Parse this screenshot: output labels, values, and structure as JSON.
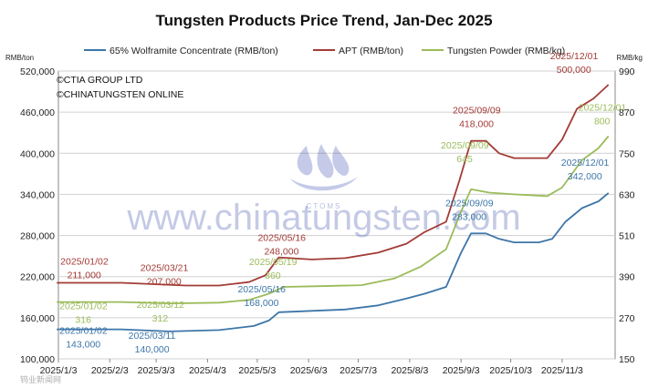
{
  "watermark": {
    "site": "www.chinatungsten.com",
    "logo_text": "CTOMS",
    "footer": "钨业新闻网"
  },
  "copyright": [
    "©CTIA GROUP LTD",
    "©CHINATUNGSTEN ONLINE"
  ],
  "chart_data": {
    "type": "line",
    "title": "Tungsten Products Price Trend, Jan-Dec 2025",
    "left_axis": {
      "unit": "RMB/ton",
      "range": [
        100000,
        520000
      ],
      "ticks": [
        100000,
        160000,
        220000,
        280000,
        340000,
        400000,
        460000,
        520000
      ],
      "tick_labels": [
        "100,000",
        "160,000",
        "220,000",
        "280,000",
        "340,000",
        "400,000",
        "460,000",
        "520,000"
      ]
    },
    "right_axis": {
      "unit": "RMB/kg",
      "range": [
        150,
        990
      ],
      "ticks": [
        150,
        270,
        390,
        510,
        630,
        750,
        870,
        990
      ],
      "tick_labels": [
        "150",
        "270",
        "390",
        "510",
        "630",
        "750",
        "870",
        "990"
      ]
    },
    "x_axis": {
      "range": [
        "2025/1/3",
        "2025/12/5"
      ],
      "tick_labels": [
        "2025/1/3",
        "2025/2/3",
        "2025/3/3",
        "2025/4/3",
        "2025/5/3",
        "2025/6/3",
        "2025/7/3",
        "2025/8/3",
        "2025/9/3",
        "2025/10/3",
        "2025/11/3"
      ]
    },
    "grid": true,
    "legend_position": "top",
    "series": [
      {
        "name": "65% Wolframite Concentrate (RMB/ton)",
        "axis": "left",
        "color": "#3d76a8",
        "points": [
          [
            "2025/1/2",
            143000
          ],
          [
            "2025/2/10",
            143000
          ],
          [
            "2025/3/11",
            140000
          ],
          [
            "2025/4/10",
            142000
          ],
          [
            "2025/5/1",
            148000
          ],
          [
            "2025/5/10",
            156000
          ],
          [
            "2025/5/16",
            168000
          ],
          [
            "2025/6/5",
            170000
          ],
          [
            "2025/6/25",
            172000
          ],
          [
            "2025/7/15",
            178000
          ],
          [
            "2025/8/1",
            188000
          ],
          [
            "2025/8/12",
            195000
          ],
          [
            "2025/8/25",
            205000
          ],
          [
            "2025/9/3",
            255000
          ],
          [
            "2025/9/9",
            283000
          ],
          [
            "2025/9/18",
            283000
          ],
          [
            "2025/9/26",
            275000
          ],
          [
            "2025/10/5",
            270000
          ],
          [
            "2025/10/20",
            270000
          ],
          [
            "2025/10/28",
            275000
          ],
          [
            "2025/11/5",
            300000
          ],
          [
            "2025/11/15",
            320000
          ],
          [
            "2025/11/25",
            330000
          ],
          [
            "2025/12/1",
            342000
          ]
        ]
      },
      {
        "name": "APT (RMB/ton)",
        "axis": "left",
        "color": "#a33b36",
        "points": [
          [
            "2025/1/2",
            211000
          ],
          [
            "2025/2/10",
            211000
          ],
          [
            "2025/3/21",
            207000
          ],
          [
            "2025/4/10",
            207000
          ],
          [
            "2025/4/28",
            212000
          ],
          [
            "2025/5/8",
            222000
          ],
          [
            "2025/5/16",
            248000
          ],
          [
            "2025/6/5",
            245000
          ],
          [
            "2025/6/25",
            247000
          ],
          [
            "2025/7/15",
            255000
          ],
          [
            "2025/8/1",
            268000
          ],
          [
            "2025/8/12",
            285000
          ],
          [
            "2025/8/25",
            300000
          ],
          [
            "2025/9/2",
            360000
          ],
          [
            "2025/9/9",
            418000
          ],
          [
            "2025/9/18",
            418000
          ],
          [
            "2025/9/26",
            400000
          ],
          [
            "2025/10/5",
            393000
          ],
          [
            "2025/10/25",
            393000
          ],
          [
            "2025/11/3",
            420000
          ],
          [
            "2025/11/12",
            465000
          ],
          [
            "2025/11/22",
            480000
          ],
          [
            "2025/12/1",
            500000
          ]
        ]
      },
      {
        "name": "Tungsten Powder (RMB/kg)",
        "axis": "right",
        "color": "#9bbb59",
        "points": [
          [
            "2025/1/2",
            316
          ],
          [
            "2025/2/10",
            316
          ],
          [
            "2025/3/12",
            312
          ],
          [
            "2025/4/10",
            314
          ],
          [
            "2025/4/28",
            322
          ],
          [
            "2025/5/10",
            340
          ],
          [
            "2025/5/19",
            360
          ],
          [
            "2025/6/10",
            362
          ],
          [
            "2025/7/5",
            365
          ],
          [
            "2025/7/25",
            385
          ],
          [
            "2025/8/10",
            420
          ],
          [
            "2025/8/25",
            470
          ],
          [
            "2025/9/3",
            580
          ],
          [
            "2025/9/9",
            645
          ],
          [
            "2025/9/20",
            635
          ],
          [
            "2025/10/5",
            630
          ],
          [
            "2025/10/25",
            625
          ],
          [
            "2025/11/3",
            650
          ],
          [
            "2025/11/15",
            730
          ],
          [
            "2025/11/25",
            765
          ],
          [
            "2025/12/1",
            800
          ]
        ]
      }
    ],
    "annotations": [
      {
        "series": 1,
        "date": "2025/01/02",
        "value": "211,000",
        "dx": 4,
        "dy": -20
      },
      {
        "series": 1,
        "date": "2025/03/21",
        "value": "207,000",
        "dx": -50,
        "dy": -16
      },
      {
        "series": 1,
        "date": "2025/05/16",
        "value": "248,000",
        "dx": -23,
        "dy": -18
      },
      {
        "series": 1,
        "date": "2025/09/09",
        "value": "418,000",
        "dx": -20,
        "dy": -30
      },
      {
        "series": 1,
        "date": "2025/12/01",
        "value": "500,000",
        "dx": -64,
        "dy": -28
      },
      {
        "series": 2,
        "date": "2025/01/02",
        "value": "316",
        "dx": 3,
        "dy": 8
      },
      {
        "series": 2,
        "date": "2025/03/12",
        "value": "312",
        "dx": -38,
        "dy": 5
      },
      {
        "series": 2,
        "date": "2025/05/19",
        "value": "360",
        "dx": -38,
        "dy": -24
      },
      {
        "series": 2,
        "date": "2025/09/09",
        "value": "645",
        "dx": -33,
        "dy": -45
      },
      {
        "series": 2,
        "date": "2025/12/01",
        "value": "800",
        "dx": -33,
        "dy": -28
      },
      {
        "series": 0,
        "date": "2025/01/02",
        "value": "143,000",
        "dx": 3,
        "dy": 5
      },
      {
        "series": 0,
        "date": "2025/03/11",
        "value": "140,000",
        "dx": -45,
        "dy": 8
      },
      {
        "series": 0,
        "date": "2025/05/16",
        "value": "168,000",
        "dx": -45,
        "dy": -22
      },
      {
        "series": 0,
        "date": "2025/09/09",
        "value": "283,000",
        "dx": -28,
        "dy": -30
      },
      {
        "series": 0,
        "date": "2025/12/01",
        "value": "342,000",
        "dx": -52,
        "dy": -30
      }
    ]
  }
}
